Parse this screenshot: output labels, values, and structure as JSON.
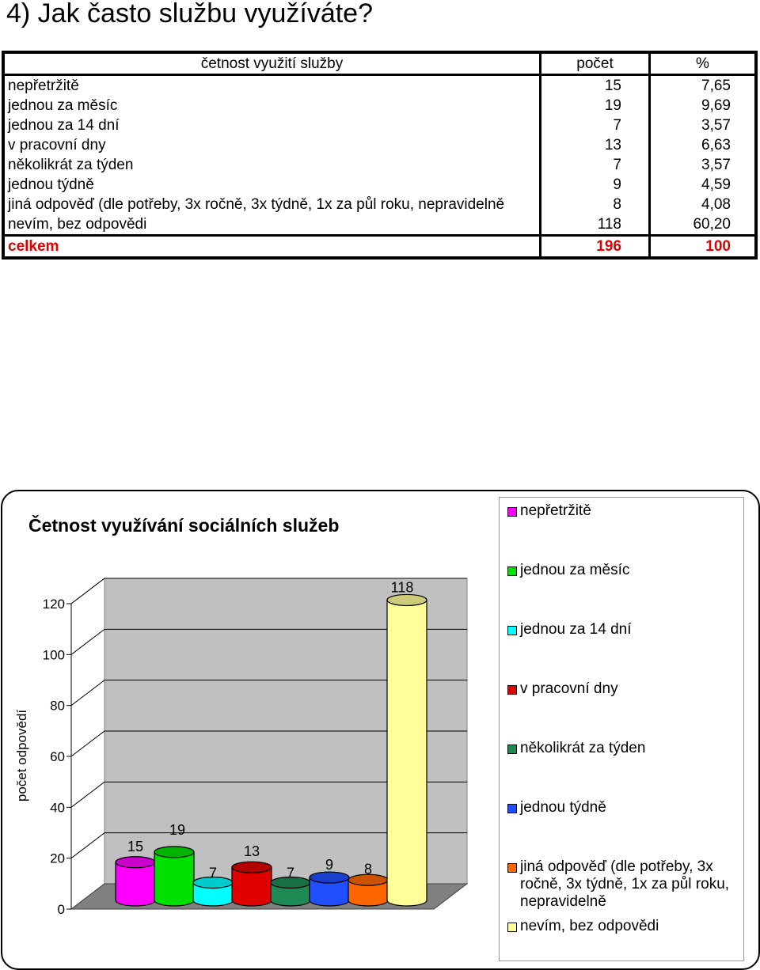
{
  "page_title": "4) Jak často službu využíváte?",
  "table": {
    "headers": [
      "četnost využití služby",
      "počet",
      "%"
    ],
    "rows": [
      [
        "nepřetržitě",
        "15",
        "7,65"
      ],
      [
        "jednou za měsíc",
        "19",
        "9,69"
      ],
      [
        "jednou za 14 dní",
        "7",
        "3,57"
      ],
      [
        "v pracovní dny",
        "13",
        "6,63"
      ],
      [
        "několikrát za týden",
        "7",
        "3,57"
      ],
      [
        "jednou týdně",
        "9",
        "4,59"
      ],
      [
        "jiná odpověď (dle potřeby, 3x ročně, 3x týdně, 1x za půl roku, nepravidelně",
        "8",
        "4,08"
      ],
      [
        "nevím, bez odpovědi",
        "118",
        "60,20"
      ]
    ],
    "total": [
      "celkem",
      "196",
      "100"
    ]
  },
  "chart_data": {
    "type": "bar",
    "title": "Četnost využívání sociálních služeb",
    "ylabel": "počet odpovědí",
    "xlabel": "",
    "ylim": [
      0,
      120
    ],
    "yticks": [
      0,
      20,
      40,
      60,
      80,
      100,
      120
    ],
    "grid": true,
    "legend_position": "right",
    "series": [
      {
        "name": "nepřetržitě",
        "values": [
          15
        ],
        "color": "#ff00ff"
      },
      {
        "name": "jednou za měsíc",
        "values": [
          19
        ],
        "color": "#00e000"
      },
      {
        "name": "jednou za 14 dní",
        "values": [
          7
        ],
        "color": "#00ffff"
      },
      {
        "name": "v pracovní dny",
        "values": [
          13
        ],
        "color": "#e00000"
      },
      {
        "name": "několikrát za týden",
        "values": [
          7
        ],
        "color": "#1f8a55"
      },
      {
        "name": "jednou týdně",
        "values": [
          9
        ],
        "color": "#1f4fff"
      },
      {
        "name": "jiná odpověď (dle potřeby, 3x ročně, 3x týdně, 1x za půl roku, nepravidelně",
        "values": [
          8
        ],
        "color": "#ff6600"
      },
      {
        "name": "nevím, bez odpovědi",
        "values": [
          118
        ],
        "color": "#ffff99"
      }
    ],
    "data_labels": [
      "15",
      "19",
      "7",
      "13",
      "7",
      "9",
      "8",
      "118"
    ]
  }
}
